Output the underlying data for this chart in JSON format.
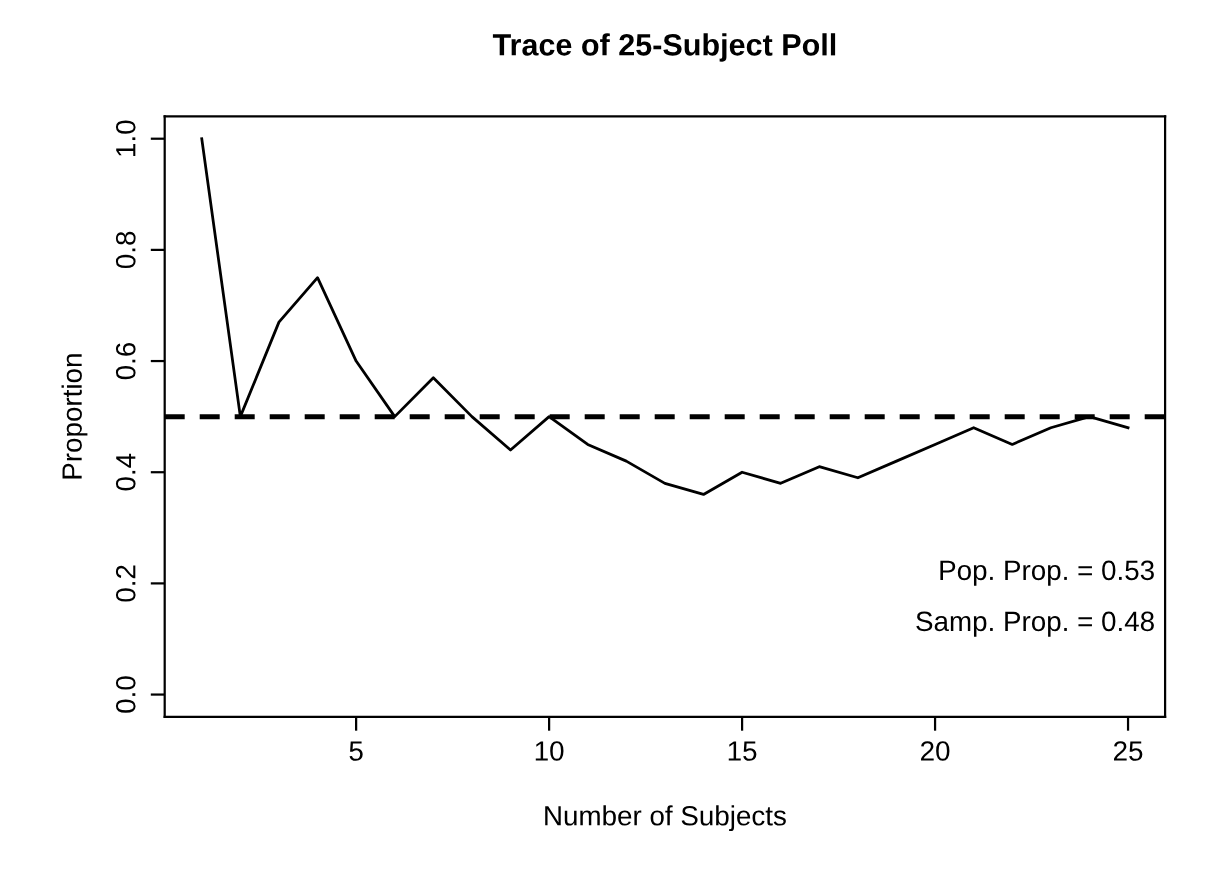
{
  "chart_data": {
    "type": "line",
    "title": "Trace of 25-Subject Poll",
    "xlabel": "Number of Subjects",
    "ylabel": "Proportion",
    "x": [
      1,
      2,
      3,
      4,
      5,
      6,
      7,
      8,
      9,
      10,
      11,
      12,
      13,
      14,
      15,
      16,
      17,
      18,
      19,
      20,
      21,
      22,
      23,
      24,
      25
    ],
    "series": [
      {
        "color": "#000000",
        "values": [
          1.0,
          0.5,
          0.67,
          0.75,
          0.6,
          0.5,
          0.57,
          0.5,
          0.44,
          0.5,
          0.45,
          0.42,
          0.38,
          0.36,
          0.4,
          0.38,
          0.41,
          0.39,
          0.42,
          0.45,
          0.48,
          0.45,
          0.48,
          0.5,
          0.48
        ]
      }
    ],
    "xlim": [
      0.04,
      25.96
    ],
    "ylim": [
      -0.04,
      1.04
    ],
    "xticks": [
      5,
      10,
      15,
      20,
      25
    ],
    "yticks": [
      {
        "value": 0,
        "label": "0.0"
      },
      {
        "value": 0.2,
        "label": "0.2"
      },
      {
        "value": 0.4,
        "label": "0.4"
      },
      {
        "value": 0.6,
        "label": "0.6"
      },
      {
        "value": 0.8,
        "label": "0.8"
      },
      {
        "value": 1,
        "label": "1.0"
      }
    ],
    "ref_lines": [
      {
        "axis": "y",
        "value": 0.5,
        "color": "#000000",
        "line_style": "dashed"
      }
    ],
    "annotations": [
      "Pop. Prop. = 0.53",
      "Samp. Prop. = 0.48"
    ],
    "grid": false,
    "legend": false,
    "marker": "none",
    "line_style": "solid"
  }
}
